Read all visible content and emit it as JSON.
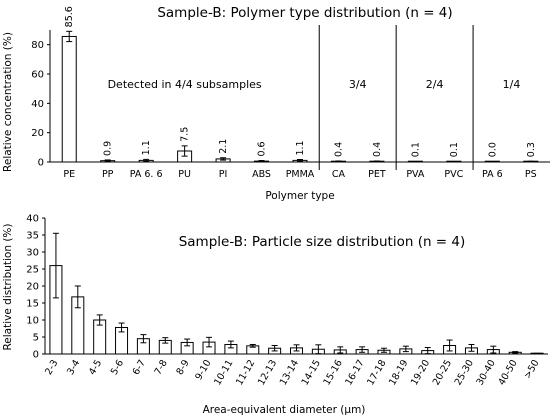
{
  "chart_data": [
    {
      "type": "bar",
      "title": "Sample-B: Polymer type distribution (n = 4)",
      "xlabel": "Polymer type",
      "ylabel": "Relative concentration (%)",
      "ylim": [
        0,
        90
      ],
      "yticks": [
        0,
        20,
        40,
        60,
        80
      ],
      "categories": [
        "PE",
        "PP",
        "PA 6. 6",
        "PU",
        "PI",
        "ABS",
        "PMMA",
        "CA",
        "PET",
        "PVA",
        "PVC",
        "PA 6",
        "PS"
      ],
      "value_labels": [
        "85.6",
        "0.9",
        "1.1",
        "7.5",
        "2.1",
        "0.6",
        "1.1",
        "0.4",
        "0.4",
        "0.1",
        "0.1",
        "0.0",
        "0.3"
      ],
      "values": [
        85.6,
        0.9,
        1.1,
        7.5,
        2.1,
        0.6,
        1.1,
        0.4,
        0.4,
        0.1,
        0.1,
        0.0,
        0.3
      ],
      "errors": [
        3.5,
        0.5,
        0.7,
        3.5,
        0.8,
        0.4,
        0.6,
        0.3,
        0.3,
        0.1,
        0.1,
        0.0,
        0.2
      ],
      "groups": [
        {
          "label": "Detected in 4/4 subsamples",
          "start": 0,
          "end": 6
        },
        {
          "label": "3/4",
          "start": 7,
          "end": 8
        },
        {
          "label": "2/4",
          "start": 9,
          "end": 10
        },
        {
          "label": "1/4",
          "start": 11,
          "end": 12
        }
      ],
      "grid": false
    },
    {
      "type": "bar",
      "title": "Sample-B: Particle size distribution (n = 4)",
      "xlabel": "Area-equivalent diameter (µm)",
      "ylabel": "Relative distribution (%)",
      "ylim": [
        0,
        40
      ],
      "yticks": [
        0,
        5,
        10,
        15,
        20,
        25,
        30,
        35,
        40
      ],
      "categories": [
        "2-3",
        "3-4",
        "4-5",
        "5-6",
        "6-7",
        "7-8",
        "8-9",
        "9-10",
        "10-11",
        "11-12",
        "12-13",
        "13-14",
        "14-15",
        "15-16",
        "16-17",
        "17-18",
        "18-19",
        "19-20",
        "20-25",
        "25-30",
        "30-40",
        "40-50",
        ">50"
      ],
      "values": [
        26,
        16.8,
        10,
        7.8,
        4.5,
        4,
        3.4,
        3.5,
        2.8,
        2.4,
        1.7,
        1.8,
        1.4,
        1.2,
        1.3,
        1.1,
        1.5,
        1,
        2.5,
        1.8,
        1.3,
        0.5,
        0.1
      ],
      "errors": [
        9.5,
        3.2,
        1.5,
        1.3,
        1.2,
        0.8,
        1,
        1.4,
        1,
        0.4,
        0.8,
        0.9,
        1.3,
        0.9,
        0.8,
        0.6,
        0.8,
        0.9,
        1.6,
        1,
        1,
        0.2,
        0.1
      ],
      "grid": false
    }
  ]
}
